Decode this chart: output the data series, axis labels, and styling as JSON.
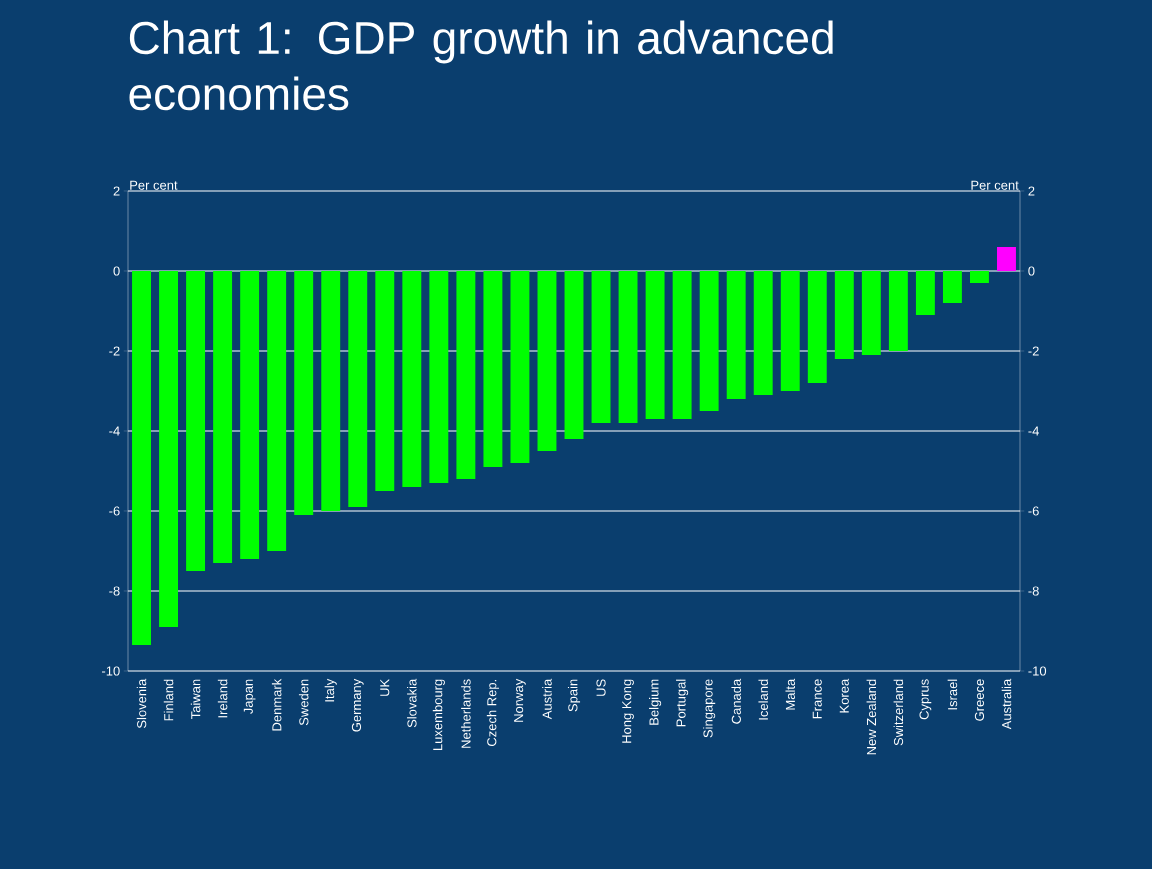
{
  "chart_data": {
    "type": "bar",
    "title": "Chart 1: GDP growth in advanced economies",
    "categories": [
      "Slovenia",
      "Finland",
      "Taiwan",
      "Ireland",
      "Japan",
      "Denmark",
      "Sweden",
      "Italy",
      "Germany",
      "UK",
      "Slovakia",
      "Luxembourg",
      "Netherlands",
      "Czech Rep.",
      "Norway",
      "Austria",
      "Spain",
      "US",
      "Hong Kong",
      "Belgium",
      "Portugal",
      "Singapore",
      "Canada",
      "Iceland",
      "Malta",
      "France",
      "Korea",
      "New Zealand",
      "Switzerland",
      "Cyprus",
      "Israel",
      "Greece",
      "Australia"
    ],
    "values": [
      -9.35,
      -8.9,
      -7.5,
      -7.3,
      -7.2,
      -7.0,
      -6.1,
      -6.0,
      -5.9,
      -5.5,
      -5.4,
      -5.3,
      -5.2,
      -4.9,
      -4.8,
      -4.5,
      -4.2,
      -3.8,
      -3.8,
      -3.7,
      -3.7,
      -3.5,
      -3.2,
      -3.1,
      -3.0,
      -2.8,
      -2.2,
      -2.1,
      -2.0,
      -1.1,
      -0.8,
      -0.3,
      0.6
    ],
    "colors": [
      "#00ff00",
      "#00ff00",
      "#00ff00",
      "#00ff00",
      "#00ff00",
      "#00ff00",
      "#00ff00",
      "#00ff00",
      "#00ff00",
      "#00ff00",
      "#00ff00",
      "#00ff00",
      "#00ff00",
      "#00ff00",
      "#00ff00",
      "#00ff00",
      "#00ff00",
      "#00ff00",
      "#00ff00",
      "#00ff00",
      "#00ff00",
      "#00ff00",
      "#00ff00",
      "#00ff00",
      "#00ff00",
      "#00ff00",
      "#00ff00",
      "#00ff00",
      "#00ff00",
      "#00ff00",
      "#00ff00",
      "#00ff00",
      "#ff00ff"
    ],
    "ylabel": "Per cent",
    "y2label": "Per cent",
    "ylim": [
      -10,
      2
    ],
    "yticks": [
      -10,
      -8,
      -6,
      -4,
      -2,
      0,
      2
    ],
    "y2lim": [
      -10,
      2
    ],
    "y2ticks": [
      -10,
      -8,
      -6,
      -4,
      -2,
      0,
      2
    ],
    "grid": "y"
  }
}
